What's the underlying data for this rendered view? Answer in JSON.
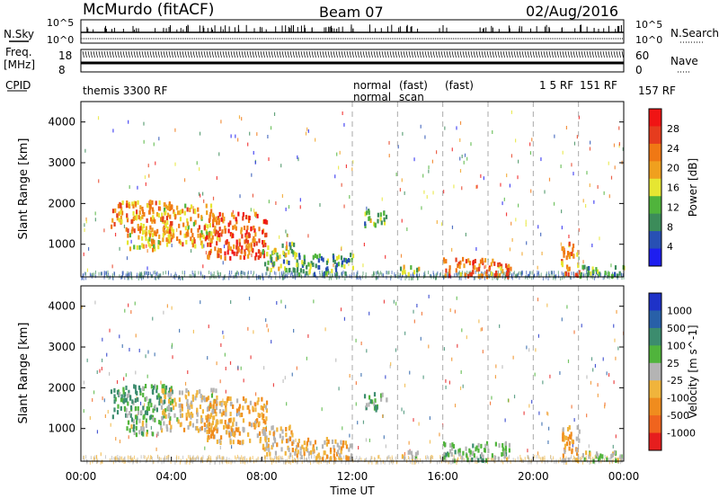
{
  "header": {
    "station": "McMurdo (fitACF)",
    "beam": "Beam 07",
    "date": "02/Aug/2016"
  },
  "noise_panel": {
    "left_label": "N.Sky",
    "right_label": "N.Search",
    "scale_top": "10^5",
    "scale_bottom": "10^0"
  },
  "freq_panel": {
    "left_label_1": "Freq.",
    "left_label_2": "[MHz]",
    "left_ticks": [
      "18",
      "8"
    ],
    "right_label": "Nave",
    "right_ticks": [
      "60",
      "0"
    ]
  },
  "cpid_panel": {
    "label": "CPID",
    "programs": [
      "themis 3300 RF",
      "normal",
      "normal",
      "(fast)",
      "scan",
      "(fast)",
      "1 5 RF",
      "151 RF",
      "157 RF"
    ]
  },
  "colors": {
    "power_scale": [
      "#1e1ef0",
      "#2850b4",
      "#3c8c5a",
      "#50b43c",
      "#e6e632",
      "#f0a01e",
      "#f07814",
      "#e63c1e",
      "#f01414"
    ],
    "velocity_scale": [
      "#1e32c8",
      "#2860a8",
      "#3c8c6e",
      "#50b43c",
      "#b4b4b4",
      "#f0b43c",
      "#f08c1e",
      "#f0641e",
      "#e61e1e"
    ]
  },
  "chart_data": [
    {
      "type": "heatmap",
      "title": "Power",
      "xlabel": "Time UT",
      "ylabel": "Slant Range [km]",
      "xlim": [
        "00:00",
        "24:00"
      ],
      "ylim": [
        200,
        4500
      ],
      "x_ticks": [
        "00:00",
        "04:00",
        "08:00",
        "12:00",
        "16:00",
        "20:00",
        "00:00"
      ],
      "y_ticks": [
        1000,
        2000,
        3000,
        4000
      ],
      "colorbar": {
        "label": "Power [dB]",
        "ticks": [
          "28",
          "24",
          "20",
          "16",
          "12",
          "8",
          "4"
        ],
        "range": [
          0,
          32
        ]
      },
      "scatter_regions": [
        {
          "t0": 1.3,
          "t1": 4.0,
          "r0": 1300,
          "r1": 2100,
          "value": 22
        },
        {
          "t0": 2.0,
          "t1": 3.5,
          "r0": 900,
          "r1": 1300,
          "value": 18
        },
        {
          "t0": 3.5,
          "t1": 6.0,
          "r0": 1000,
          "r1": 2000,
          "value": 20
        },
        {
          "t0": 5.5,
          "t1": 8.2,
          "r0": 700,
          "r1": 1800,
          "value": 26
        },
        {
          "t0": 8.0,
          "t1": 9.5,
          "r0": 400,
          "r1": 1100,
          "value": 12
        },
        {
          "t0": 9.5,
          "t1": 12.0,
          "r0": 300,
          "r1": 800,
          "value": 10
        },
        {
          "t0": 12.5,
          "t1": 13.5,
          "r0": 1500,
          "r1": 1900,
          "value": 12
        },
        {
          "t0": 14.0,
          "t1": 15.0,
          "r0": 300,
          "r1": 500,
          "value": 16
        },
        {
          "t0": 16.0,
          "t1": 19.0,
          "r0": 250,
          "r1": 700,
          "value": 24
        },
        {
          "t0": 21.2,
          "t1": 22.0,
          "r0": 250,
          "r1": 1100,
          "value": 22
        },
        {
          "t0": 22.0,
          "t1": 24.0,
          "r0": 250,
          "r1": 500,
          "value": 10
        }
      ]
    },
    {
      "type": "heatmap",
      "title": "Velocity",
      "xlabel": "Time UT",
      "ylabel": "Slant Range [km]",
      "xlim": [
        "00:00",
        "24:00"
      ],
      "ylim": [
        200,
        4500
      ],
      "x_ticks": [
        "00:00",
        "04:00",
        "08:00",
        "12:00",
        "16:00",
        "20:00",
        "00:00"
      ],
      "y_ticks": [
        1000,
        2000,
        3000,
        4000
      ],
      "colorbar": {
        "label": "Velocity [m s^-1]",
        "ticks": [
          "1000",
          "500",
          "100",
          "25",
          "-25",
          "-100",
          "-500",
          "-1000"
        ],
        "range": [
          -1000,
          1000
        ]
      },
      "scatter_regions": [
        {
          "t0": 1.3,
          "t1": 4.0,
          "r0": 1300,
          "r1": 2100,
          "value": 300
        },
        {
          "t0": 2.0,
          "t1": 3.5,
          "r0": 900,
          "r1": 1300,
          "value": 150
        },
        {
          "t0": 3.5,
          "t1": 6.0,
          "r0": 1000,
          "r1": 2000,
          "value": -150
        },
        {
          "t0": 5.5,
          "t1": 8.2,
          "r0": 700,
          "r1": 1800,
          "value": -300
        },
        {
          "t0": 8.0,
          "t1": 9.5,
          "r0": 400,
          "r1": 1100,
          "value": -200
        },
        {
          "t0": 9.5,
          "t1": 12.0,
          "r0": 300,
          "r1": 800,
          "value": -250
        },
        {
          "t0": 12.5,
          "t1": 13.5,
          "r0": 1500,
          "r1": 1900,
          "value": 200
        },
        {
          "t0": 14.0,
          "t1": 15.0,
          "r0": 300,
          "r1": 500,
          "value": -100
        },
        {
          "t0": 16.0,
          "t1": 19.0,
          "r0": 250,
          "r1": 700,
          "value": 150
        },
        {
          "t0": 21.2,
          "t1": 22.0,
          "r0": 250,
          "r1": 1100,
          "value": -300
        },
        {
          "t0": 22.0,
          "t1": 24.0,
          "r0": 250,
          "r1": 500,
          "value": 60
        }
      ]
    }
  ]
}
